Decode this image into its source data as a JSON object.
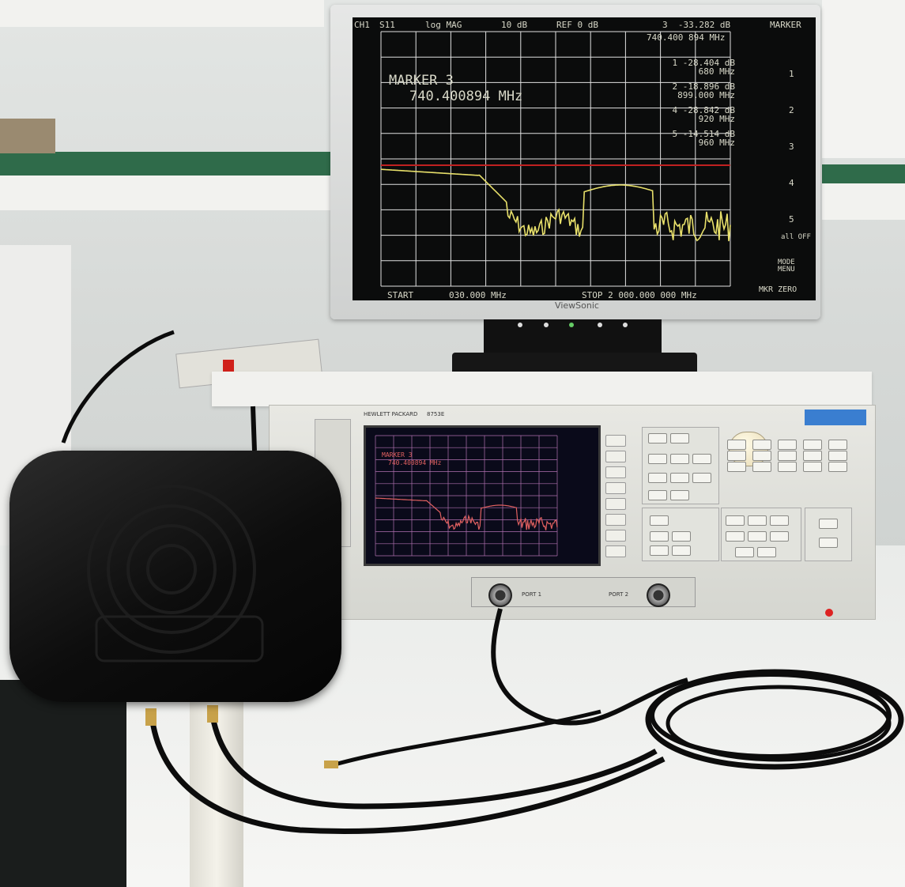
{
  "monitor": {
    "brand": "ViewSonic",
    "header": {
      "channel": "CH1",
      "param": "S11",
      "format": "log MAG",
      "scale": "10 dB",
      "ref": "REF 0 dB",
      "active_marker_value": "3  -33.282 dB",
      "active_marker_freq": "740.400 894 MHz"
    },
    "marker_title": "MARKER 3",
    "marker_freq": "740.400894 MHz",
    "marker_list": [
      {
        "label": "1",
        "value": "-28.404 dB",
        "freq": "680 MHz"
      },
      {
        "label": "2",
        "value": "-18.896 dB",
        "freq": "899.000 MHz"
      },
      {
        "label": "4",
        "value": "-28.842 dB",
        "freq": "920 MHz"
      },
      {
        "label": "5",
        "value": "-14.514 dB",
        "freq": "960 MHz"
      }
    ],
    "start_label": "START",
    "start_value": "030.000 MHz",
    "stop_label": "STOP 2 000.000 000 MHz",
    "softkeys": {
      "title": "MARKER",
      "nums": [
        "1",
        "2",
        "3",
        "4",
        "5"
      ],
      "all_off": "all OFF",
      "mode_menu": "MODE MENU",
      "mkr_zero": "MKR ZERO"
    }
  },
  "analyzer": {
    "brand": "HEWLETT PACKARD",
    "model": "8753E",
    "screen_marker_title": "MARKER 3",
    "screen_marker_freq": "740.400894 MHz",
    "label_port1": "PORT 1",
    "label_port2": "PORT 2"
  },
  "colors": {
    "trace": "#e8e06a",
    "ref_line": "#c02020",
    "grid": "#e0e0e0",
    "screen_bg": "#0b0c0c"
  }
}
